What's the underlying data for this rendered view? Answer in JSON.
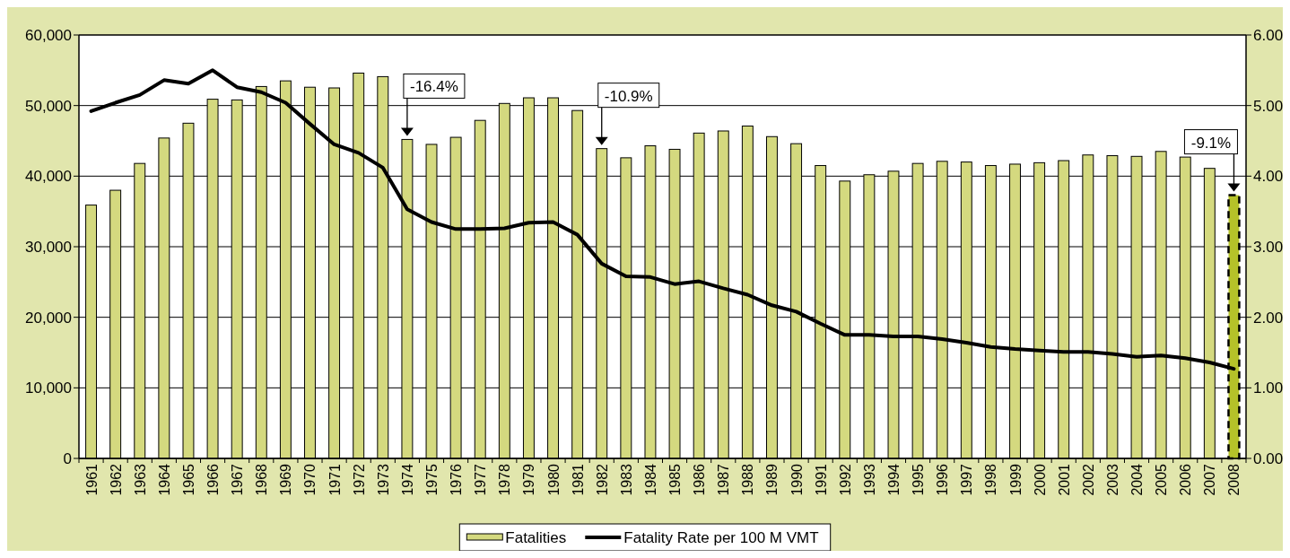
{
  "chart_data": {
    "type": "bar",
    "categories": [
      "1961",
      "1962",
      "1963",
      "1964",
      "1965",
      "1966",
      "1967",
      "1968",
      "1969",
      "1970",
      "1971",
      "1972",
      "1973",
      "1974",
      "1975",
      "1976",
      "1977",
      "1978",
      "1979",
      "1980",
      "1981",
      "1982",
      "1983",
      "1984",
      "1985",
      "1986",
      "1987",
      "1988",
      "1989",
      "1990",
      "1991",
      "1992",
      "1993",
      "1994",
      "1995",
      "1996",
      "1997",
      "1998",
      "1999",
      "2000",
      "2001",
      "2002",
      "2003",
      "2004",
      "2005",
      "2006",
      "2007",
      "2008"
    ],
    "series": [
      {
        "name": "Fatalities",
        "color": "#d4d97f",
        "colors": [
          "#d4d97f",
          "#d4d97f",
          "#d4d97f",
          "#d4d97f",
          "#d4d97f",
          "#d4d97f",
          "#d4d97f",
          "#d4d97f",
          "#d4d97f",
          "#d4d97f",
          "#d4d97f",
          "#d4d97f",
          "#d4d97f",
          "#d4d97f",
          "#d4d97f",
          "#d4d97f",
          "#d4d97f",
          "#d4d97f",
          "#d4d97f",
          "#d4d97f",
          "#d4d97f",
          "#d4d97f",
          "#d4d97f",
          "#d4d97f",
          "#d4d97f",
          "#d4d97f",
          "#d4d97f",
          "#d4d97f",
          "#d4d97f",
          "#d4d97f",
          "#d4d97f",
          "#d4d97f",
          "#d4d97f",
          "#d4d97f",
          "#d4d97f",
          "#d4d97f",
          "#d4d97f",
          "#d4d97f",
          "#d4d97f",
          "#d4d97f",
          "#d4d97f",
          "#d4d97f",
          "#d4d97f",
          "#d4d97f",
          "#d4d97f",
          "#d4d97f",
          "#d4d97f",
          "#b5c229"
        ],
        "values": [
          35900,
          38000,
          41800,
          45400,
          47500,
          50900,
          50800,
          52700,
          53500,
          52600,
          52500,
          54600,
          54100,
          45200,
          44500,
          45500,
          47900,
          50300,
          51100,
          51100,
          49300,
          43900,
          42600,
          44300,
          43800,
          46100,
          46400,
          47100,
          45600,
          44600,
          41500,
          39300,
          40200,
          40700,
          41800,
          42100,
          42000,
          41500,
          41700,
          41900,
          42200,
          43000,
          42900,
          42800,
          43500,
          42700,
          41100,
          37300
        ]
      },
      {
        "name": "Fatality Rate per 100 M VMT",
        "type": "line",
        "axis": "y2",
        "color": "#000000",
        "values": [
          4.92,
          5.04,
          5.15,
          5.36,
          5.31,
          5.5,
          5.26,
          5.19,
          5.04,
          4.74,
          4.45,
          4.33,
          4.12,
          3.53,
          3.35,
          3.25,
          3.25,
          3.26,
          3.34,
          3.35,
          3.17,
          2.76,
          2.58,
          2.57,
          2.47,
          2.51,
          2.41,
          2.32,
          2.17,
          2.08,
          1.91,
          1.75,
          1.75,
          1.73,
          1.73,
          1.69,
          1.64,
          1.58,
          1.55,
          1.53,
          1.51,
          1.51,
          1.48,
          1.44,
          1.46,
          1.42,
          1.36,
          1.27
        ]
      }
    ],
    "ylim": [
      0,
      60000
    ],
    "yticks": [
      {
        "value": 0,
        "label": "0"
      },
      {
        "value": 10000,
        "label": "10,000"
      },
      {
        "value": 20000,
        "label": "20,000"
      },
      {
        "value": 30000,
        "label": "30,000"
      },
      {
        "value": 40000,
        "label": "40,000"
      },
      {
        "value": 50000,
        "label": "50,000"
      },
      {
        "value": 60000,
        "label": "60,000"
      }
    ],
    "y2lim": [
      0,
      6
    ],
    "y2ticks": [
      {
        "value": 0,
        "label": "0.00"
      },
      {
        "value": 1,
        "label": "1.00"
      },
      {
        "value": 2,
        "label": "2.00"
      },
      {
        "value": 3,
        "label": "3.00"
      },
      {
        "value": 4,
        "label": "4.00"
      },
      {
        "value": 5,
        "label": "5.00"
      },
      {
        "value": 6,
        "label": "6.00"
      }
    ],
    "annotations": [
      {
        "text": "-16.4%",
        "x": "1974",
        "y": 45200
      },
      {
        "text": "-10.9%",
        "x": "1982",
        "y": 43900
      },
      {
        "text": "-9.1%",
        "x": "2008",
        "y": 37300
      }
    ],
    "grid": "y",
    "legend": "bottom",
    "line_style": "solid"
  }
}
